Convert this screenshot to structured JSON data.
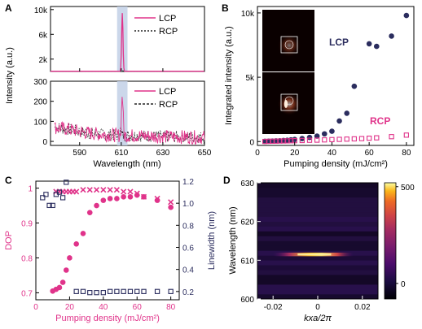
{
  "colors": {
    "lcp": "#e0338a",
    "rcp": "#222222",
    "navy": "#2b2d5e",
    "pink": "#e0338a",
    "highlight": "#c5d3e8"
  },
  "chart_data": [
    {
      "id": "A",
      "type": "line",
      "panel_label": "A",
      "xlabel": "Wavelength (nm)",
      "ylabel": "Intensity (a.u.)",
      "xlim": [
        576,
        650
      ],
      "x_ticks": [
        "590",
        "610",
        "630",
        "650"
      ],
      "highlight_band": [
        608,
        613
      ],
      "upper": {
        "ylim": [
          0,
          10500
        ],
        "y_ticks": [
          "2k",
          "6k",
          "10k"
        ],
        "legend": [
          "LCP",
          "RCP"
        ],
        "peak": {
          "x": 610.5,
          "lcp": 9400,
          "rcp": 60
        }
      },
      "lower": {
        "ylim": [
          -20,
          300
        ],
        "y_ticks": [
          "0",
          "100",
          "200",
          "300"
        ],
        "legend": [
          "LCP",
          "RCP"
        ],
        "envelope": [
          [
            578,
            70
          ],
          [
            585,
            60
          ],
          [
            592,
            45
          ],
          [
            600,
            35
          ],
          [
            610,
            30
          ],
          [
            620,
            28
          ],
          [
            630,
            24
          ],
          [
            640,
            22
          ],
          [
            650,
            20
          ]
        ]
      }
    },
    {
      "id": "B",
      "type": "scatter",
      "panel_label": "B",
      "xlabel": "Pumping density (mJ/cm²)",
      "ylabel": "Integrated intensity (a.u.)",
      "xlim": [
        0,
        84
      ],
      "ylim": [
        -300,
        10500
      ],
      "x_ticks": [
        "0",
        "20",
        "40",
        "60",
        "80"
      ],
      "y_ticks": [
        "0",
        "5k",
        "10k"
      ],
      "annotations": [
        "LCP",
        "RCP"
      ],
      "series": [
        {
          "name": "LCP",
          "x": [
            4,
            6,
            8,
            10,
            12,
            14,
            16,
            18,
            20,
            24,
            28,
            32,
            36,
            40,
            44,
            48,
            52,
            60,
            64,
            72,
            80
          ],
          "y": [
            20,
            30,
            40,
            50,
            60,
            80,
            100,
            130,
            160,
            230,
            320,
            420,
            600,
            800,
            1600,
            2200,
            4300,
            7600,
            7400,
            8200,
            9800
          ]
        },
        {
          "name": "RCP",
          "x": [
            4,
            6,
            8,
            10,
            12,
            14,
            16,
            18,
            20,
            24,
            28,
            32,
            36,
            40,
            44,
            48,
            52,
            56,
            60,
            64,
            72,
            80
          ],
          "y": [
            10,
            20,
            25,
            30,
            40,
            45,
            50,
            60,
            70,
            80,
            100,
            110,
            130,
            150,
            170,
            190,
            210,
            230,
            260,
            290,
            380,
            500
          ]
        }
      ]
    },
    {
      "id": "C",
      "type": "scatter",
      "panel_label": "C",
      "xlabel": "Pumping density (mJ/cm²)",
      "ylabel_left": "DOP",
      "ylabel_right": "Linewidth (nm)",
      "xlim": [
        0,
        85
      ],
      "ylim_left": [
        0.68,
        1.02
      ],
      "ylim_right": [
        0.125,
        1.2
      ],
      "x_ticks": [
        "0",
        "20",
        "40",
        "60",
        "80"
      ],
      "y_ticks_left": [
        "0.7",
        "0.8",
        "0.9",
        "1"
      ],
      "y_ticks_right": [
        "0.2",
        "0.4",
        "0.6",
        "0.8",
        "1.0",
        "1.2"
      ],
      "series": [
        {
          "name": "DOP",
          "x": [
            10,
            12,
            14,
            16,
            18,
            20,
            24,
            28,
            32,
            36,
            40,
            44,
            48,
            52,
            56,
            60,
            64,
            72,
            80
          ],
          "y": [
            0.705,
            0.71,
            0.715,
            0.73,
            0.765,
            0.8,
            0.84,
            0.87,
            0.93,
            0.95,
            0.965,
            0.97,
            0.97,
            0.975,
            0.975,
            0.98,
            0.975,
            0.965,
            0.945
          ]
        },
        {
          "name": "DOP",
          "x": [
            12,
            14,
            16,
            18,
            20,
            22,
            24,
            28,
            32,
            36,
            40,
            44,
            48,
            52,
            56,
            60,
            64,
            72,
            80
          ],
          "y": [
            0.99,
            0.99,
            0.99,
            0.99,
            0.99,
            0.99,
            0.99,
            0.995,
            0.995,
            0.995,
            0.995,
            0.995,
            0.995,
            0.99,
            0.99,
            0.985,
            0.975,
            0.97,
            0.96
          ]
        },
        {
          "name": "Linewidth",
          "x": [
            4,
            6,
            8,
            10,
            12,
            14,
            16,
            18,
            24,
            28,
            32,
            36,
            40,
            44,
            48,
            52,
            56,
            60,
            64,
            72,
            80
          ],
          "y": [
            1.05,
            1.08,
            0.98,
            0.98,
            1.08,
            1.1,
            1.05,
            1.19,
            0.2,
            0.2,
            0.19,
            0.19,
            0.19,
            0.2,
            0.2,
            0.2,
            0.2,
            0.2,
            0.2,
            0.2,
            0.2
          ]
        }
      ]
    },
    {
      "id": "D",
      "type": "heatmap",
      "panel_label": "D",
      "xlabel": "kxa/2π",
      "ylabel": "Wavelength (nm)",
      "xlim": [
        -0.027,
        0.027
      ],
      "ylim": [
        600,
        630
      ],
      "x_ticks": [
        "-0.02",
        "0",
        "0.02"
      ],
      "y_ticks": [
        "600",
        "610",
        "620",
        "630"
      ],
      "colorbar_ticks": [
        "0",
        "500"
      ],
      "zlim": [
        -80,
        520
      ],
      "peak": {
        "wavelength": 611.5,
        "kx_center": -0.001,
        "value": 500
      }
    }
  ]
}
